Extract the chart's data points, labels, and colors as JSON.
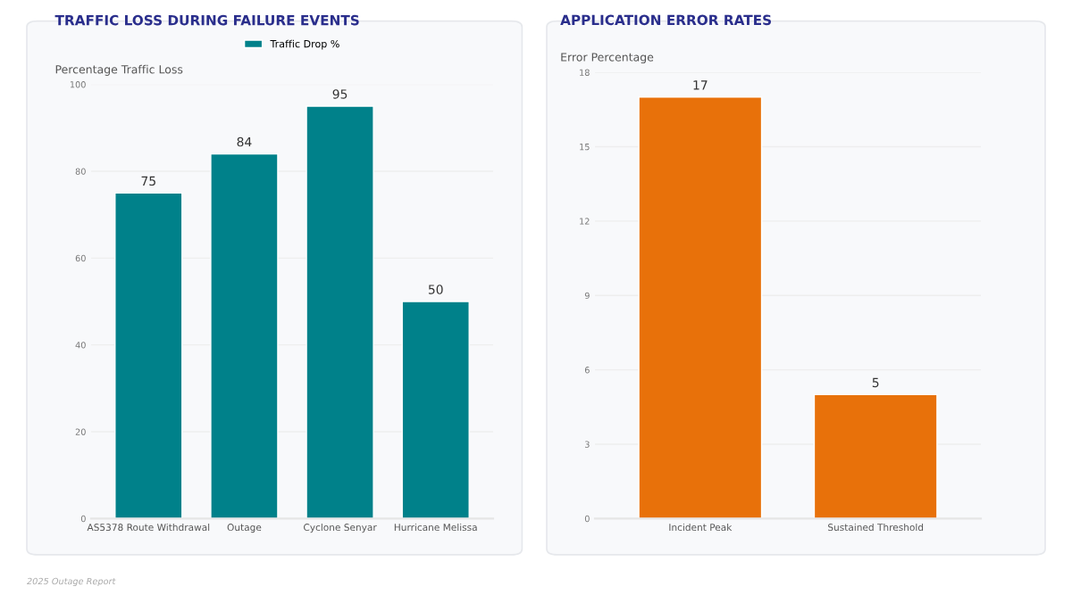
{
  "chart_data": [
    {
      "type": "bar",
      "title": "TRAFFIC LOSS DURING FAILURE EVENTS",
      "ylabel": "Percentage Traffic Loss",
      "categories": [
        "AS5378 Route Withdrawal",
        "Outage",
        "Cyclone Senyar",
        "Hurricane Melissa"
      ],
      "series": [
        {
          "name": "Traffic Drop %",
          "color": "#00818a",
          "values": [
            75,
            84,
            95,
            50
          ]
        }
      ],
      "ylim": [
        0,
        100
      ],
      "yticks": [
        0,
        20,
        40,
        60,
        80,
        100
      ],
      "grid": "y",
      "legend": "top",
      "data_labels": true,
      "annotations": [
        "2025 Outage Report"
      ]
    },
    {
      "type": "bar",
      "title": "APPLICATION ERROR RATES",
      "ylabel": "Error Percentage",
      "categories": [
        "Incident Peak",
        "Sustained Threshold"
      ],
      "series": [
        {
          "color": "#e8710a",
          "values": [
            17,
            5
          ]
        }
      ],
      "ylim": [
        0,
        18
      ],
      "yticks": [
        0,
        3,
        6,
        9,
        12,
        15,
        18
      ],
      "grid": "y",
      "data_labels": true
    }
  ]
}
